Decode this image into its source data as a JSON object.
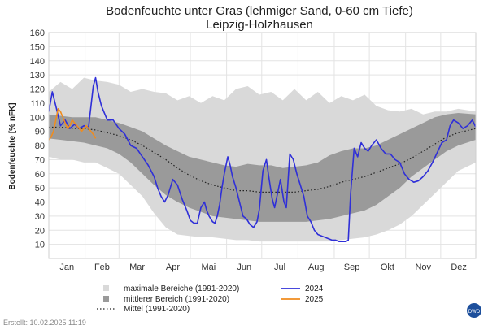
{
  "chart_data": {
    "type": "area",
    "title": "Bodenfeuchte unter Gras (lehmiger Sand, 0-60 cm Tiefe)",
    "subtitle": "Leipzig-Holzhausen",
    "ylabel": "Bodenfeuchte [% nFK]",
    "xlabel": "",
    "ylim": [
      0,
      160
    ],
    "yticks": [
      10,
      20,
      30,
      40,
      50,
      60,
      70,
      80,
      90,
      100,
      110,
      120,
      130,
      140,
      150,
      160
    ],
    "xlim": [
      0,
      365
    ],
    "months": [
      "Jan",
      "Feb",
      "Mar",
      "Apr",
      "Mai",
      "Jun",
      "Jul",
      "Aug",
      "Sep",
      "Okt",
      "Nov",
      "Dez"
    ],
    "grid": true,
    "legend_position": "bottom",
    "bands": {
      "max_range": {
        "name": "maximale Bereiche (1991-2020)",
        "color": "#d9d9d9",
        "x": [
          0,
          10,
          20,
          30,
          40,
          50,
          60,
          70,
          80,
          90,
          100,
          110,
          120,
          130,
          140,
          150,
          160,
          170,
          180,
          190,
          200,
          210,
          220,
          230,
          240,
          250,
          260,
          270,
          280,
          290,
          300,
          310,
          320,
          330,
          340,
          350,
          365
        ],
        "upper": [
          118,
          125,
          120,
          128,
          126,
          125,
          123,
          118,
          120,
          118,
          117,
          112,
          115,
          110,
          115,
          112,
          120,
          122,
          116,
          118,
          112,
          120,
          112,
          118,
          110,
          115,
          112,
          116,
          108,
          105,
          104,
          106,
          102,
          104,
          104,
          106,
          104
        ],
        "lower": [
          72,
          70,
          70,
          68,
          68,
          64,
          60,
          52,
          44,
          32,
          22,
          17,
          16,
          15,
          15,
          14,
          13,
          13,
          12,
          12,
          12,
          12,
          12,
          12,
          12,
          13,
          14,
          15,
          17,
          20,
          24,
          30,
          38,
          46,
          54,
          62,
          68
        ]
      },
      "mid_range": {
        "name": "mittlerer Bereich (1991-2020)",
        "color": "#9a9a9a",
        "x": [
          0,
          10,
          20,
          30,
          40,
          50,
          60,
          70,
          80,
          90,
          100,
          110,
          120,
          130,
          140,
          150,
          160,
          170,
          180,
          190,
          200,
          210,
          220,
          230,
          240,
          250,
          260,
          270,
          280,
          290,
          300,
          310,
          320,
          330,
          340,
          350,
          365
        ],
        "upper": [
          102,
          101,
          100,
          100,
          100,
          98,
          96,
          93,
          90,
          85,
          80,
          76,
          72,
          70,
          68,
          66,
          65,
          67,
          66,
          66,
          64,
          65,
          66,
          68,
          73,
          76,
          78,
          78,
          80,
          84,
          88,
          92,
          96,
          100,
          102,
          103,
          102
        ],
        "lower": [
          85,
          84,
          83,
          82,
          80,
          78,
          74,
          68,
          60,
          52,
          45,
          40,
          36,
          33,
          30,
          29,
          28,
          27,
          26,
          26,
          26,
          26,
          26,
          27,
          28,
          30,
          32,
          34,
          38,
          44,
          50,
          58,
          64,
          70,
          76,
          80,
          84
        ]
      },
      "mean": {
        "name": "Mittel (1991-2020)",
        "color": "#222222",
        "x": [
          0,
          10,
          20,
          30,
          40,
          50,
          60,
          70,
          80,
          90,
          100,
          110,
          120,
          130,
          140,
          150,
          160,
          170,
          180,
          190,
          200,
          210,
          220,
          230,
          240,
          250,
          260,
          270,
          280,
          290,
          300,
          310,
          320,
          330,
          340,
          350,
          365
        ],
        "values": [
          93,
          93,
          92,
          92,
          91,
          89,
          87,
          84,
          80,
          75,
          70,
          64,
          59,
          55,
          52,
          50,
          48,
          48,
          47,
          47,
          47,
          47,
          48,
          49,
          51,
          54,
          56,
          58,
          61,
          64,
          67,
          71,
          76,
          81,
          86,
          89,
          92
        ]
      }
    },
    "series": [
      {
        "name": "2024",
        "color": "#2f2fd8",
        "x": [
          0,
          3,
          6,
          10,
          14,
          18,
          22,
          26,
          30,
          34,
          38,
          40,
          42,
          45,
          50,
          55,
          60,
          65,
          70,
          75,
          80,
          85,
          90,
          93,
          96,
          99,
          102,
          106,
          110,
          114,
          118,
          121,
          124,
          127,
          130,
          133,
          135,
          137,
          140,
          142,
          144,
          146,
          148,
          150,
          153,
          155,
          157,
          160,
          163,
          166,
          169,
          172,
          175,
          178,
          180,
          183,
          186,
          188,
          191,
          193,
          196,
          198,
          201,
          203,
          206,
          209,
          212,
          215,
          218,
          221,
          224,
          227,
          230,
          233,
          236,
          239,
          242,
          245,
          248,
          250,
          252,
          254,
          256,
          258,
          261,
          264,
          267,
          270,
          273,
          276,
          280,
          284,
          288,
          292,
          296,
          300,
          304,
          308,
          312,
          316,
          320,
          324,
          328,
          332,
          336,
          340,
          343,
          346,
          350,
          354,
          358,
          362,
          365
        ],
        "values": [
          104,
          118,
          108,
          94,
          98,
          92,
          95,
          92,
          94,
          93,
          122,
          128,
          118,
          108,
          98,
          98,
          92,
          88,
          80,
          78,
          72,
          66,
          58,
          50,
          44,
          40,
          45,
          56,
          52,
          42,
          34,
          27,
          25,
          25,
          36,
          40,
          34,
          30,
          26,
          25,
          30,
          38,
          50,
          60,
          72,
          66,
          58,
          50,
          40,
          30,
          28,
          24,
          22,
          26,
          35,
          62,
          70,
          58,
          42,
          36,
          48,
          56,
          40,
          36,
          74,
          70,
          60,
          52,
          44,
          30,
          26,
          20,
          17,
          16,
          15,
          14,
          13,
          13,
          12,
          12,
          12,
          12,
          13,
          46,
          78,
          72,
          82,
          78,
          76,
          80,
          84,
          78,
          74,
          74,
          70,
          68,
          60,
          56,
          54,
          55,
          58,
          62,
          68,
          75,
          82,
          84,
          94,
          98,
          96,
          92,
          94,
          98,
          93
        ]
      },
      {
        "name": "2025",
        "color": "#f08c1e",
        "x": [
          0,
          2,
          4,
          6,
          8,
          10,
          12,
          14,
          16,
          18,
          20,
          22,
          24,
          26,
          28,
          30,
          32,
          34,
          36,
          38,
          40
        ],
        "values": [
          84,
          86,
          90,
          98,
          106,
          104,
          100,
          96,
          92,
          94,
          98,
          96,
          94,
          92,
          90,
          92,
          94,
          92,
          90,
          88,
          85
        ]
      }
    ],
    "legend": [
      {
        "label": "maximale Bereiche (1991-2020)",
        "kind": "square",
        "color": "#d9d9d9"
      },
      {
        "label": "mittlerer Bereich (1991-2020)",
        "kind": "square",
        "color": "#9a9a9a"
      },
      {
        "label": "Mittel (1991-2020)",
        "kind": "dotted",
        "color": "#222222"
      },
      {
        "label": "2024",
        "kind": "line",
        "color": "#2f2fd8"
      },
      {
        "label": "2025",
        "kind": "line",
        "color": "#f08c1e"
      }
    ]
  },
  "footer": {
    "created": "Erstellt:  10.02.2025 11:19",
    "logo_text": "DWD"
  }
}
